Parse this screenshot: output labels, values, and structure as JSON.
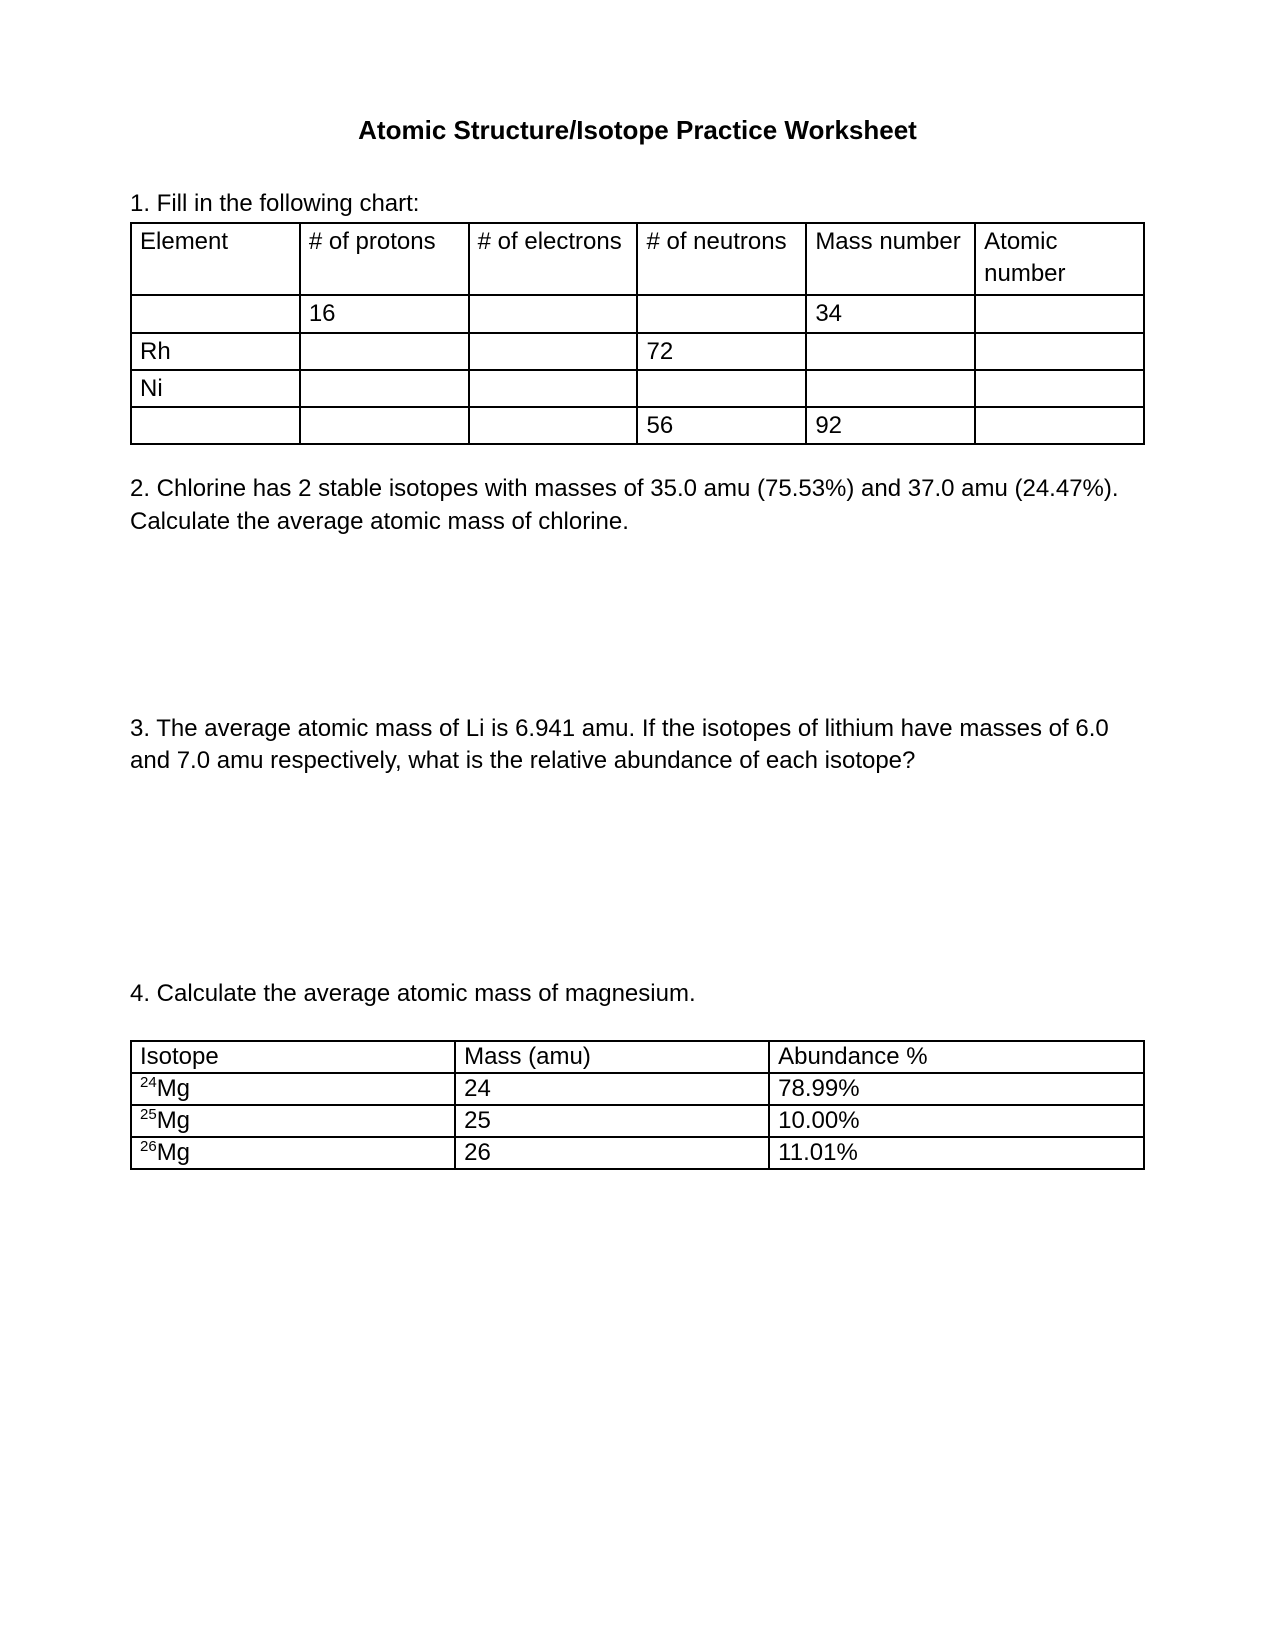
{
  "title": "Atomic Structure/Isotope Practice Worksheet",
  "q1": {
    "label": "1. Fill in the following chart:",
    "columns": [
      "Element",
      "# of protons",
      "# of electrons",
      "# of neutrons",
      "Mass number",
      "Atomic number"
    ],
    "rows": [
      [
        "",
        "16",
        "",
        "",
        "34",
        ""
      ],
      [
        "Rh",
        "",
        "",
        "72",
        "",
        ""
      ],
      [
        "Ni",
        "",
        "",
        "",
        "",
        ""
      ],
      [
        "",
        "",
        "",
        "56",
        "92",
        ""
      ]
    ]
  },
  "q2": {
    "text": "2. Chlorine has 2 stable isotopes with masses of 35.0 amu (75.53%) and 37.0 amu (24.47%).  Calculate the average atomic mass of chlorine."
  },
  "q3": {
    "text": "3. The average atomic mass of Li is 6.941 amu.   If the isotopes of lithium have masses of 6.0 and 7.0 amu respectively, what is the relative abundance of each isotope?"
  },
  "q4": {
    "label": "4.  Calculate the average atomic mass of magnesium.",
    "columns": [
      "Isotope",
      "Mass (amu)",
      "Abundance %"
    ],
    "rows": [
      {
        "sup": "24",
        "sym": "Mg",
        "mass": "24",
        "abund": "78.99%"
      },
      {
        "sup": "25",
        "sym": "Mg",
        "mass": "25",
        "abund": "10.00%"
      },
      {
        "sup": "26",
        "sym": "Mg",
        "mass": "26",
        "abund": "11.01%"
      }
    ]
  },
  "style": {
    "page_bg": "#ffffff",
    "text_color": "#000000",
    "border_color": "#000000",
    "title_fontsize": 26,
    "body_fontsize": 24,
    "font_family": "Comic Sans MS"
  }
}
